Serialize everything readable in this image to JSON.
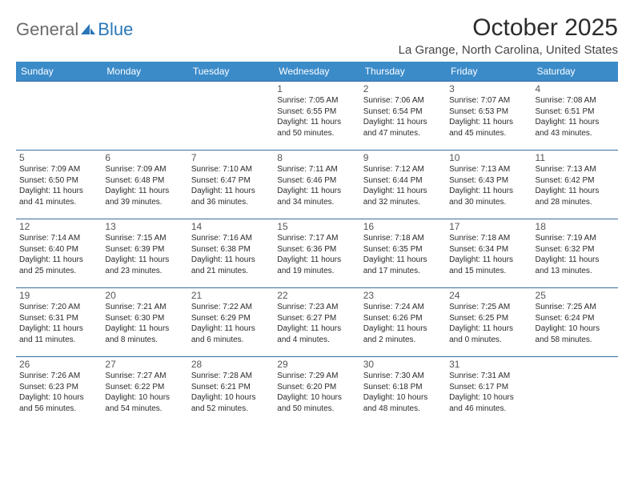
{
  "logo": {
    "text1": "General",
    "text2": "Blue"
  },
  "title": "October 2025",
  "location": "La Grange, North Carolina, United States",
  "colors": {
    "header_bg": "#3b8bc9",
    "header_text": "#ffffff",
    "rule": "#3b6ea0",
    "logo_gray": "#6b6b6b",
    "logo_blue": "#2a77b8"
  },
  "weekdays": [
    "Sunday",
    "Monday",
    "Tuesday",
    "Wednesday",
    "Thursday",
    "Friday",
    "Saturday"
  ],
  "weeks": [
    [
      null,
      null,
      null,
      {
        "n": "1",
        "sr": "Sunrise: 7:05 AM",
        "ss": "Sunset: 6:55 PM",
        "d1": "Daylight: 11 hours",
        "d2": "and 50 minutes."
      },
      {
        "n": "2",
        "sr": "Sunrise: 7:06 AM",
        "ss": "Sunset: 6:54 PM",
        "d1": "Daylight: 11 hours",
        "d2": "and 47 minutes."
      },
      {
        "n": "3",
        "sr": "Sunrise: 7:07 AM",
        "ss": "Sunset: 6:53 PM",
        "d1": "Daylight: 11 hours",
        "d2": "and 45 minutes."
      },
      {
        "n": "4",
        "sr": "Sunrise: 7:08 AM",
        "ss": "Sunset: 6:51 PM",
        "d1": "Daylight: 11 hours",
        "d2": "and 43 minutes."
      }
    ],
    [
      {
        "n": "5",
        "sr": "Sunrise: 7:09 AM",
        "ss": "Sunset: 6:50 PM",
        "d1": "Daylight: 11 hours",
        "d2": "and 41 minutes."
      },
      {
        "n": "6",
        "sr": "Sunrise: 7:09 AM",
        "ss": "Sunset: 6:48 PM",
        "d1": "Daylight: 11 hours",
        "d2": "and 39 minutes."
      },
      {
        "n": "7",
        "sr": "Sunrise: 7:10 AM",
        "ss": "Sunset: 6:47 PM",
        "d1": "Daylight: 11 hours",
        "d2": "and 36 minutes."
      },
      {
        "n": "8",
        "sr": "Sunrise: 7:11 AM",
        "ss": "Sunset: 6:46 PM",
        "d1": "Daylight: 11 hours",
        "d2": "and 34 minutes."
      },
      {
        "n": "9",
        "sr": "Sunrise: 7:12 AM",
        "ss": "Sunset: 6:44 PM",
        "d1": "Daylight: 11 hours",
        "d2": "and 32 minutes."
      },
      {
        "n": "10",
        "sr": "Sunrise: 7:13 AM",
        "ss": "Sunset: 6:43 PM",
        "d1": "Daylight: 11 hours",
        "d2": "and 30 minutes."
      },
      {
        "n": "11",
        "sr": "Sunrise: 7:13 AM",
        "ss": "Sunset: 6:42 PM",
        "d1": "Daylight: 11 hours",
        "d2": "and 28 minutes."
      }
    ],
    [
      {
        "n": "12",
        "sr": "Sunrise: 7:14 AM",
        "ss": "Sunset: 6:40 PM",
        "d1": "Daylight: 11 hours",
        "d2": "and 25 minutes."
      },
      {
        "n": "13",
        "sr": "Sunrise: 7:15 AM",
        "ss": "Sunset: 6:39 PM",
        "d1": "Daylight: 11 hours",
        "d2": "and 23 minutes."
      },
      {
        "n": "14",
        "sr": "Sunrise: 7:16 AM",
        "ss": "Sunset: 6:38 PM",
        "d1": "Daylight: 11 hours",
        "d2": "and 21 minutes."
      },
      {
        "n": "15",
        "sr": "Sunrise: 7:17 AM",
        "ss": "Sunset: 6:36 PM",
        "d1": "Daylight: 11 hours",
        "d2": "and 19 minutes."
      },
      {
        "n": "16",
        "sr": "Sunrise: 7:18 AM",
        "ss": "Sunset: 6:35 PM",
        "d1": "Daylight: 11 hours",
        "d2": "and 17 minutes."
      },
      {
        "n": "17",
        "sr": "Sunrise: 7:18 AM",
        "ss": "Sunset: 6:34 PM",
        "d1": "Daylight: 11 hours",
        "d2": "and 15 minutes."
      },
      {
        "n": "18",
        "sr": "Sunrise: 7:19 AM",
        "ss": "Sunset: 6:32 PM",
        "d1": "Daylight: 11 hours",
        "d2": "and 13 minutes."
      }
    ],
    [
      {
        "n": "19",
        "sr": "Sunrise: 7:20 AM",
        "ss": "Sunset: 6:31 PM",
        "d1": "Daylight: 11 hours",
        "d2": "and 11 minutes."
      },
      {
        "n": "20",
        "sr": "Sunrise: 7:21 AM",
        "ss": "Sunset: 6:30 PM",
        "d1": "Daylight: 11 hours",
        "d2": "and 8 minutes."
      },
      {
        "n": "21",
        "sr": "Sunrise: 7:22 AM",
        "ss": "Sunset: 6:29 PM",
        "d1": "Daylight: 11 hours",
        "d2": "and 6 minutes."
      },
      {
        "n": "22",
        "sr": "Sunrise: 7:23 AM",
        "ss": "Sunset: 6:27 PM",
        "d1": "Daylight: 11 hours",
        "d2": "and 4 minutes."
      },
      {
        "n": "23",
        "sr": "Sunrise: 7:24 AM",
        "ss": "Sunset: 6:26 PM",
        "d1": "Daylight: 11 hours",
        "d2": "and 2 minutes."
      },
      {
        "n": "24",
        "sr": "Sunrise: 7:25 AM",
        "ss": "Sunset: 6:25 PM",
        "d1": "Daylight: 11 hours",
        "d2": "and 0 minutes."
      },
      {
        "n": "25",
        "sr": "Sunrise: 7:25 AM",
        "ss": "Sunset: 6:24 PM",
        "d1": "Daylight: 10 hours",
        "d2": "and 58 minutes."
      }
    ],
    [
      {
        "n": "26",
        "sr": "Sunrise: 7:26 AM",
        "ss": "Sunset: 6:23 PM",
        "d1": "Daylight: 10 hours",
        "d2": "and 56 minutes."
      },
      {
        "n": "27",
        "sr": "Sunrise: 7:27 AM",
        "ss": "Sunset: 6:22 PM",
        "d1": "Daylight: 10 hours",
        "d2": "and 54 minutes."
      },
      {
        "n": "28",
        "sr": "Sunrise: 7:28 AM",
        "ss": "Sunset: 6:21 PM",
        "d1": "Daylight: 10 hours",
        "d2": "and 52 minutes."
      },
      {
        "n": "29",
        "sr": "Sunrise: 7:29 AM",
        "ss": "Sunset: 6:20 PM",
        "d1": "Daylight: 10 hours",
        "d2": "and 50 minutes."
      },
      {
        "n": "30",
        "sr": "Sunrise: 7:30 AM",
        "ss": "Sunset: 6:18 PM",
        "d1": "Daylight: 10 hours",
        "d2": "and 48 minutes."
      },
      {
        "n": "31",
        "sr": "Sunrise: 7:31 AM",
        "ss": "Sunset: 6:17 PM",
        "d1": "Daylight: 10 hours",
        "d2": "and 46 minutes."
      },
      null
    ]
  ]
}
